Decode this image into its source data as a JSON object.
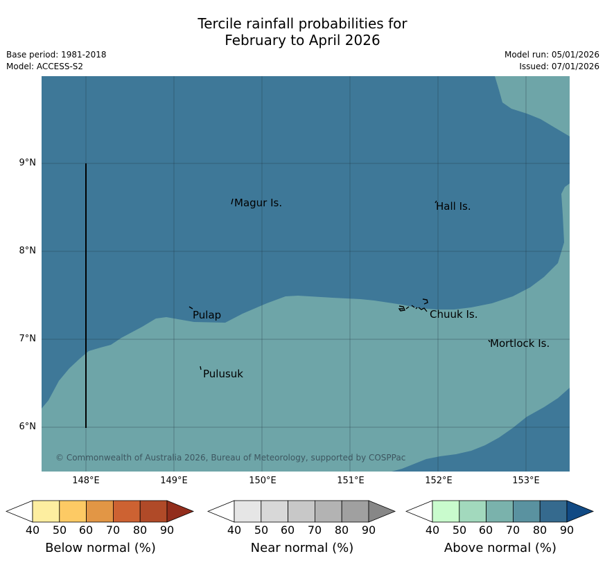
{
  "title": {
    "line1": "Tercile rainfall probabilities for",
    "line2": "February to April 2026"
  },
  "meta": {
    "base_period": "Base period: 1981-2018",
    "model": "Model: ACCESS-S2",
    "model_run": "Model run: 05/01/2026",
    "issued": "Issued: 07/01/2026"
  },
  "map": {
    "colors": {
      "above_80": "#3e7898",
      "above_70": "#6ea5a8",
      "coast": "#000000"
    },
    "y_ticks": [
      "9°N",
      "8°N",
      "7°N",
      "6°N"
    ],
    "x_ticks": [
      "148°E",
      "149°E",
      "150°E",
      "151°E",
      "152°E",
      "153°E"
    ],
    "places": {
      "magur": "Magur Is.",
      "hall": "Hall Is.",
      "pulap": "Pulap",
      "chuuk": "Chuuk Is.",
      "mortlock": "Mortlock Is.",
      "pulusuk": "Pulusuk"
    },
    "copyright": "© Commonwealth of Australia 2026, Bureau of Meteorology, supported by COSPPac"
  },
  "legend": {
    "ticks": [
      "40",
      "50",
      "60",
      "70",
      "80",
      "90"
    ],
    "below": {
      "title": "Below normal (%)",
      "colors": [
        "#ffffff",
        "#fdeea0",
        "#fdca64",
        "#e29645",
        "#cd6232",
        "#b04a28",
        "#922d1c"
      ]
    },
    "near": {
      "title": "Near normal (%)",
      "colors": [
        "#ffffff",
        "#e6e6e6",
        "#d8d8d8",
        "#c8c8c8",
        "#b3b3b3",
        "#a0a0a0",
        "#878787"
      ]
    },
    "above": {
      "title": "Above normal (%)",
      "colors": [
        "#ffffff",
        "#c9fbcd",
        "#a2d9bd",
        "#7ab2ac",
        "#5a92a0",
        "#356a8e",
        "#114a84"
      ]
    }
  }
}
